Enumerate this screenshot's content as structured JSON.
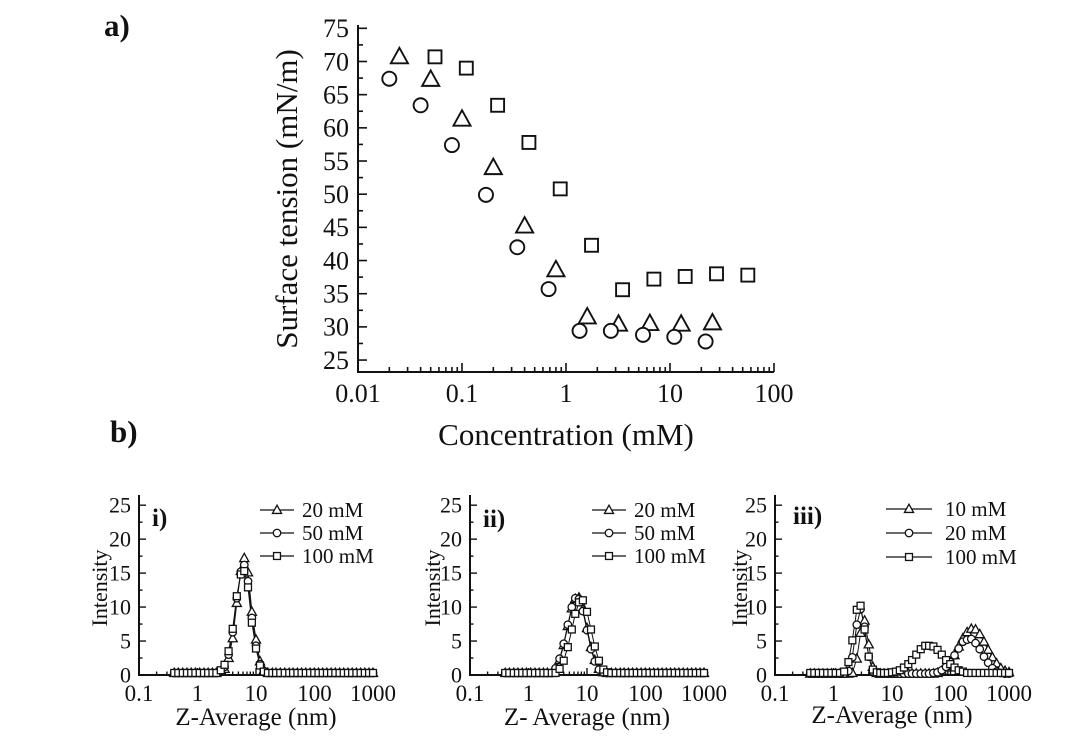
{
  "figure": {
    "background": "#ffffff",
    "ink_color": "#111111",
    "panel_a_label": "a)",
    "panel_b_label": "b)"
  },
  "chart_data": [
    {
      "id": "a",
      "type": "scatter",
      "panel_label": "",
      "xlabel": "Concentration (mM)",
      "ylabel": "Surface tension (mN/m)",
      "xscale": "log",
      "xlim": [
        0.01,
        100
      ],
      "ylim": [
        23.2,
        75.5
      ],
      "xticks": [
        0.01,
        0.1,
        1,
        10,
        100
      ],
      "xtick_labels": [
        "0.01",
        "0.1",
        "1",
        "10",
        "100"
      ],
      "yticks": [
        25,
        30,
        35,
        40,
        45,
        50,
        55,
        60,
        65,
        70,
        75
      ],
      "grid": false,
      "series": [
        {
          "name": "series-triangle",
          "marker": "triangle",
          "points": [
            [
              0.025,
              70.7
            ],
            [
              0.05,
              67.3
            ],
            [
              0.1,
              61.3
            ],
            [
              0.2,
              54.0
            ],
            [
              0.4,
              45.2
            ],
            [
              0.8,
              38.6
            ],
            [
              1.6,
              31.5
            ],
            [
              3.2,
              30.4
            ],
            [
              6.4,
              30.5
            ],
            [
              12.8,
              30.4
            ],
            [
              25.6,
              30.6
            ]
          ]
        },
        {
          "name": "series-circle",
          "marker": "circle",
          "points": [
            [
              0.02,
              67.4
            ],
            [
              0.04,
              63.4
            ],
            [
              0.08,
              57.4
            ],
            [
              0.17,
              49.9
            ],
            [
              0.34,
              42.0
            ],
            [
              0.68,
              35.7
            ],
            [
              1.35,
              29.4
            ],
            [
              2.7,
              29.4
            ],
            [
              5.5,
              28.8
            ],
            [
              11,
              28.5
            ],
            [
              22,
              27.8
            ]
          ]
        },
        {
          "name": "series-square",
          "marker": "square",
          "points": [
            [
              0.055,
              70.7
            ],
            [
              0.11,
              69.0
            ],
            [
              0.22,
              63.4
            ],
            [
              0.44,
              57.8
            ],
            [
              0.88,
              50.8
            ],
            [
              1.76,
              42.3
            ],
            [
              3.5,
              35.6
            ],
            [
              7,
              37.2
            ],
            [
              14,
              37.6
            ],
            [
              28,
              38.0
            ],
            [
              56,
              37.8
            ]
          ]
        }
      ]
    },
    {
      "id": "b-i",
      "type": "line",
      "panel_label": "i)",
      "xlabel": "Z-Average (nm)",
      "ylabel": "Intensity",
      "xscale": "log",
      "xlim": [
        0.1,
        1000
      ],
      "ylim": [
        0,
        26.5
      ],
      "xticks": [
        0.1,
        1,
        10,
        100,
        1000
      ],
      "xtick_labels": [
        "0.1",
        "1",
        "10",
        "100",
        "1000"
      ],
      "yticks": [
        0,
        5,
        10,
        15,
        20,
        25
      ],
      "legend_position": "top-right",
      "x": [
        0.4,
        0.47,
        0.56,
        0.66,
        0.78,
        0.92,
        1.09,
        1.29,
        1.52,
        1.8,
        2.1,
        2.5,
        2.9,
        3.4,
        4.0,
        4.7,
        5.5,
        6.3,
        7.3,
        8.5,
        10,
        11.7,
        13.6,
        16,
        19,
        22,
        26,
        31,
        37,
        43,
        51,
        60,
        71,
        84,
        99,
        117,
        138,
        163,
        192,
        227,
        268,
        316,
        373,
        440,
        520,
        614,
        725,
        856,
        1000
      ],
      "series": [
        {
          "name": "20 mM",
          "marker": "triangle",
          "y": [
            0.3,
            0.3,
            0.3,
            0.3,
            0.3,
            0.3,
            0.3,
            0.3,
            0.3,
            0.3,
            0.3,
            0.5,
            0.9,
            2.5,
            5.4,
            10.6,
            15.3,
            17.2,
            15.1,
            9.3,
            5.2,
            2.0,
            0.7,
            0.3,
            0.3,
            0.3,
            0.3,
            0.3,
            0.3,
            0.3,
            0.3,
            0.3,
            0.3,
            0.3,
            0.3,
            0.3,
            0.3,
            0.3,
            0.3,
            0.3,
            0.3,
            0.3,
            0.3,
            0.3,
            0.3,
            0.3,
            0.3,
            0.3,
            0.3
          ]
        },
        {
          "name": "50 mM",
          "marker": "circle",
          "y": [
            0.3,
            0.3,
            0.3,
            0.3,
            0.3,
            0.3,
            0.3,
            0.3,
            0.3,
            0.3,
            0.3,
            0.6,
            1.2,
            3.0,
            6.3,
            11.3,
            15.2,
            16.2,
            13.8,
            8.4,
            4.3,
            1.6,
            0.6,
            0.3,
            0.3,
            0.3,
            0.3,
            0.3,
            0.3,
            0.3,
            0.3,
            0.3,
            0.3,
            0.3,
            0.3,
            0.3,
            0.3,
            0.3,
            0.3,
            0.3,
            0.3,
            0.3,
            0.3,
            0.3,
            0.3,
            0.3,
            0.3,
            0.3,
            0.3
          ]
        },
        {
          "name": "100 mM",
          "marker": "square",
          "y": [
            0.3,
            0.3,
            0.3,
            0.3,
            0.3,
            0.3,
            0.3,
            0.3,
            0.3,
            0.3,
            0.3,
            0.7,
            1.5,
            3.5,
            6.8,
            11.6,
            14.8,
            15.3,
            12.9,
            7.7,
            3.9,
            1.4,
            0.5,
            0.3,
            0.3,
            0.3,
            0.3,
            0.3,
            0.3,
            0.3,
            0.3,
            0.3,
            0.3,
            0.3,
            0.3,
            0.3,
            0.3,
            0.3,
            0.3,
            0.3,
            0.3,
            0.3,
            0.3,
            0.3,
            0.3,
            0.3,
            0.3,
            0.3,
            0.3
          ]
        }
      ]
    },
    {
      "id": "b-ii",
      "type": "line",
      "panel_label": "ii)",
      "xlabel": "Z- Average (nm)",
      "ylabel": "Intensity",
      "xscale": "log",
      "xlim": [
        0.1,
        1000
      ],
      "ylim": [
        0,
        26.5
      ],
      "xticks": [
        0.1,
        1,
        10,
        100,
        1000
      ],
      "xtick_labels": [
        "0.1",
        "1",
        "10",
        "100",
        "1000"
      ],
      "yticks": [
        0,
        5,
        10,
        15,
        20,
        25
      ],
      "legend_position": "top-right",
      "x": [
        0.4,
        0.47,
        0.56,
        0.66,
        0.78,
        0.92,
        1.09,
        1.29,
        1.52,
        1.8,
        2.1,
        2.5,
        2.9,
        3.4,
        4.0,
        4.7,
        5.5,
        6.3,
        7.3,
        8.5,
        10,
        11.7,
        13.6,
        16,
        19,
        22,
        26,
        31,
        37,
        43,
        51,
        60,
        71,
        84,
        99,
        117,
        138,
        163,
        192,
        227,
        268,
        316,
        373,
        440,
        520,
        614,
        725,
        856,
        1000
      ],
      "series": [
        {
          "name": "20 mM",
          "marker": "triangle",
          "y": [
            0.3,
            0.3,
            0.3,
            0.3,
            0.3,
            0.3,
            0.3,
            0.3,
            0.3,
            0.3,
            0.3,
            0.3,
            0.9,
            2.2,
            4.4,
            7.2,
            9.8,
            11.2,
            11.4,
            9.7,
            6.9,
            4.1,
            2.2,
            0.9,
            0.4,
            0.3,
            0.3,
            0.3,
            0.3,
            0.3,
            0.3,
            0.3,
            0.3,
            0.3,
            0.3,
            0.3,
            0.3,
            0.3,
            0.3,
            0.3,
            0.3,
            0.3,
            0.3,
            0.3,
            0.3,
            0.3,
            0.3,
            0.3,
            0.3
          ]
        },
        {
          "name": "50 mM",
          "marker": "circle",
          "y": [
            0.3,
            0.3,
            0.3,
            0.3,
            0.3,
            0.3,
            0.3,
            0.3,
            0.3,
            0.3,
            0.3,
            0.3,
            1.0,
            2.4,
            4.6,
            7.4,
            10.0,
            11.3,
            11.2,
            9.4,
            6.6,
            3.8,
            2.0,
            0.8,
            0.4,
            0.3,
            0.3,
            0.3,
            0.3,
            0.3,
            0.3,
            0.3,
            0.3,
            0.3,
            0.3,
            0.3,
            0.3,
            0.3,
            0.3,
            0.3,
            0.3,
            0.3,
            0.3,
            0.3,
            0.3,
            0.3,
            0.3,
            0.3,
            0.3
          ]
        },
        {
          "name": "100 mM",
          "marker": "square",
          "y": [
            0.3,
            0.3,
            0.3,
            0.3,
            0.3,
            0.3,
            0.3,
            0.3,
            0.3,
            0.3,
            0.3,
            0.3,
            0.3,
            0.9,
            2.1,
            4.1,
            6.7,
            9.0,
            10.7,
            11.0,
            9.3,
            6.7,
            4.2,
            2.1,
            0.8,
            0.4,
            0.3,
            0.3,
            0.3,
            0.3,
            0.3,
            0.3,
            0.3,
            0.3,
            0.3,
            0.3,
            0.3,
            0.3,
            0.3,
            0.3,
            0.3,
            0.3,
            0.3,
            0.3,
            0.3,
            0.3,
            0.3,
            0.3,
            0.3
          ]
        }
      ]
    },
    {
      "id": "b-iii",
      "type": "line",
      "panel_label": "iii)",
      "xlabel": "Z-Average (nm)",
      "ylabel": "Intensity",
      "xscale": "log",
      "xlim": [
        0.1,
        1000
      ],
      "ylim": [
        0,
        26.5
      ],
      "xticks": [
        0.1,
        1,
        10,
        100,
        1000
      ],
      "xtick_labels": [
        "0.1",
        "1",
        "10",
        "100",
        "1000"
      ],
      "yticks": [
        0,
        5,
        10,
        15,
        20,
        25
      ],
      "legend_position": "top-right",
      "x": [
        0.4,
        0.47,
        0.56,
        0.66,
        0.78,
        0.92,
        1.09,
        1.29,
        1.52,
        1.8,
        2.1,
        2.5,
        2.9,
        3.4,
        4.0,
        4.7,
        5.5,
        6.3,
        7.3,
        8.5,
        10,
        11.7,
        13.6,
        16,
        19,
        22,
        26,
        31,
        37,
        43,
        51,
        60,
        71,
        84,
        99,
        117,
        138,
        163,
        192,
        227,
        268,
        316,
        373,
        440,
        520,
        614,
        725,
        856,
        1000
      ],
      "series": [
        {
          "name": "10 mM",
          "marker": "triangle",
          "y": [
            0.2,
            0.2,
            0.2,
            0.2,
            0.2,
            0.2,
            0.2,
            0.2,
            0.2,
            0.2,
            0.3,
            2.4,
            6.2,
            8.0,
            4.5,
            1.2,
            0.3,
            0.2,
            0.2,
            0.2,
            0.2,
            0.2,
            0.2,
            0.2,
            0.2,
            0.2,
            0.2,
            0.2,
            0.2,
            0.2,
            0.2,
            0.3,
            0.6,
            1.1,
            1.8,
            2.9,
            4.2,
            5.4,
            6.3,
            6.8,
            6.7,
            6.0,
            4.9,
            3.7,
            2.6,
            1.7,
            1.0,
            0.6,
            0.4
          ]
        },
        {
          "name": "20 mM",
          "marker": "circle",
          "y": [
            0.2,
            0.2,
            0.2,
            0.2,
            0.2,
            0.2,
            0.2,
            0.2,
            0.2,
            0.6,
            2.6,
            7.4,
            9.7,
            7.1,
            2.7,
            0.5,
            0.2,
            0.2,
            0.2,
            0.2,
            0.2,
            0.2,
            0.2,
            0.2,
            0.2,
            0.2,
            0.2,
            0.2,
            0.2,
            0.2,
            0.3,
            0.4,
            0.7,
            1.2,
            1.9,
            2.9,
            3.9,
            4.9,
            5.2,
            5.3,
            4.7,
            3.8,
            2.7,
            1.8,
            1.0,
            0.5,
            0.3,
            0.2,
            0.2
          ]
        },
        {
          "name": "100 mM",
          "marker": "square",
          "y": [
            0.3,
            0.3,
            0.3,
            0.3,
            0.3,
            0.3,
            0.3,
            0.3,
            0.5,
            1.9,
            5.1,
            9.6,
            10.2,
            6.7,
            2.7,
            0.8,
            0.4,
            0.3,
            0.3,
            0.3,
            0.4,
            0.5,
            0.7,
            1.1,
            1.6,
            2.2,
            3.0,
            3.8,
            4.3,
            4.3,
            4.2,
            3.7,
            3.0,
            2.2,
            1.6,
            1.1,
            0.7,
            0.5,
            0.3,
            0.3,
            0.3,
            0.3,
            0.3,
            0.3,
            0.3,
            0.3,
            0.3,
            0.3,
            0.3
          ]
        }
      ]
    }
  ]
}
